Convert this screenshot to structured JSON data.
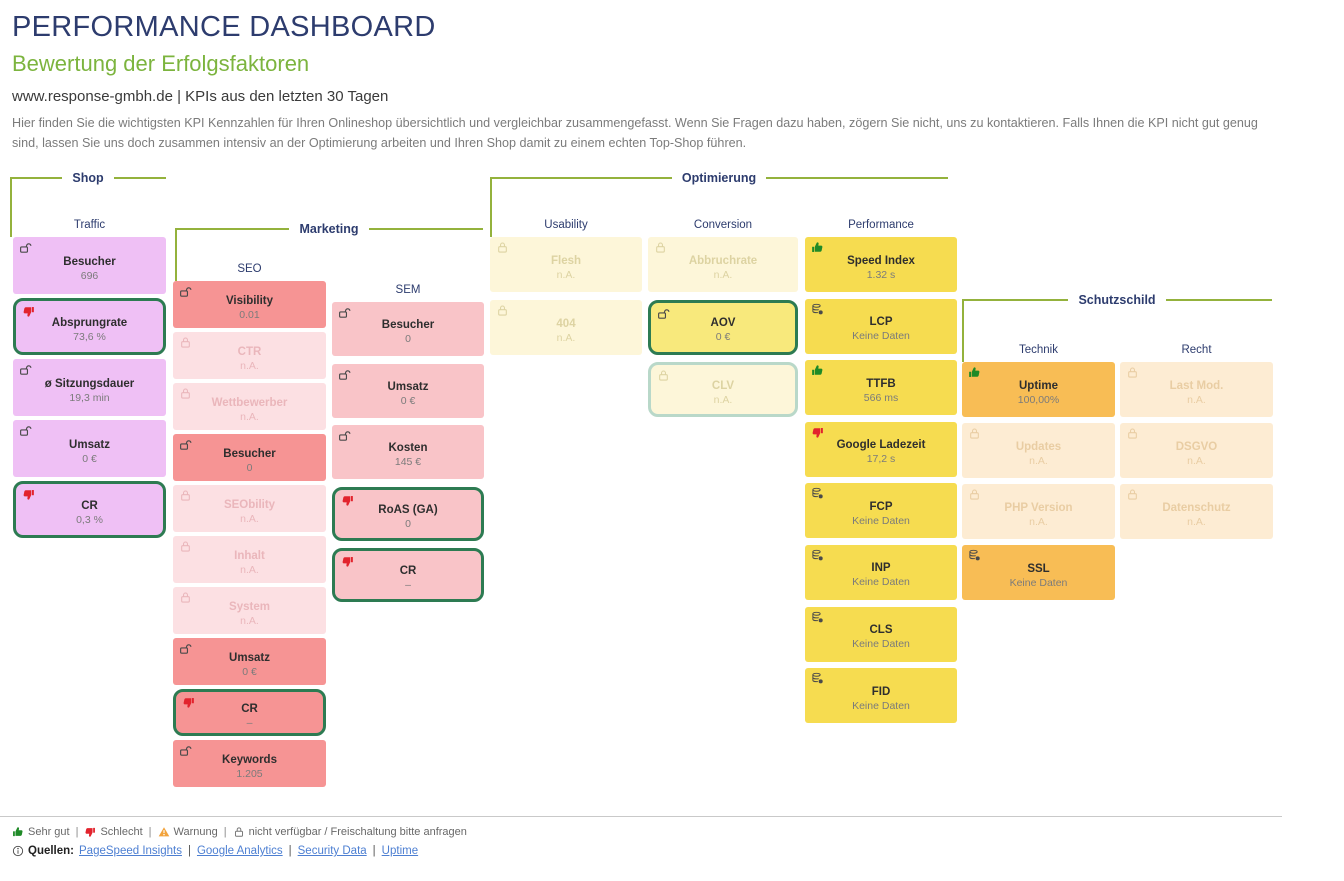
{
  "header": {
    "title": "PERFORMANCE DASHBOARD",
    "subtitle": "Bewertung der Erfolgsfaktoren",
    "meta": "www.response-gmbh.de | KPIs aus den letzten 30 Tagen",
    "description": "Hier finden Sie die wichtigsten KPI Kennzahlen für Ihren Onlineshop übersichtlich und vergleichbar zusammengefasst. Wenn Sie Fragen dazu haben, zögern Sie nicht, uns zu kontaktieren. Falls Ihnen die KPI nicht gut genug sind, lassen Sie uns doch zusammen intensiv an der Optimierung arbeiten und Ihren Shop damit zu einem echten Top-Shop führen."
  },
  "colors": {
    "title_navy": "#2d3c6e",
    "accent_green": "#7cb43e",
    "bracket_line": "#94b23c",
    "selected_border": "#2d7b52",
    "good": "#1f8a27",
    "bad": "#e2232d",
    "warning": "#f2a33c",
    "link_blue": "#4d7fd2"
  },
  "board": {
    "groups": [
      {
        "id": "shop",
        "label": "Shop",
        "columns": [
          {
            "id": "traffic",
            "label": "Traffic",
            "theme": "purple",
            "tiles": [
              {
                "title": "Besucher",
                "value": "696",
                "icon": "unlock-icon",
                "state": "active"
              },
              {
                "title": "Absprungrate",
                "value": "73,6 %",
                "icon": "thumb-down-icon",
                "state": "active",
                "selected": true
              },
              {
                "title": "ø Sitzungsdauer",
                "value": "19,3 min",
                "icon": "unlock-icon",
                "state": "active"
              },
              {
                "title": "Umsatz",
                "value": "0 €",
                "icon": "unlock-icon",
                "state": "active"
              },
              {
                "title": "CR",
                "value": "0,3 %",
                "icon": "thumb-down-icon",
                "state": "active",
                "selected": true
              }
            ]
          }
        ]
      },
      {
        "id": "marketing",
        "label": "Marketing",
        "columns": [
          {
            "id": "seo",
            "label": "SEO",
            "theme": "seo",
            "tiles": [
              {
                "title": "Visibility",
                "value": "0.01",
                "icon": "unlock-icon",
                "state": "active"
              },
              {
                "title": "CTR",
                "value": "n.A.",
                "icon": "lock-icon",
                "state": "locked"
              },
              {
                "title": "Wettbewerber",
                "value": "n.A.",
                "icon": "lock-icon",
                "state": "locked"
              },
              {
                "title": "Besucher",
                "value": "0",
                "icon": "unlock-icon",
                "state": "active"
              },
              {
                "title": "SEObility",
                "value": "n.A.",
                "icon": "lock-icon",
                "state": "locked"
              },
              {
                "title": "Inhalt",
                "value": "n.A.",
                "icon": "lock-icon",
                "state": "locked"
              },
              {
                "title": "System",
                "value": "n.A.",
                "icon": "lock-icon",
                "state": "locked"
              },
              {
                "title": "Umsatz",
                "value": "0 €",
                "icon": "unlock-icon",
                "state": "active"
              },
              {
                "title": "CR",
                "value": "–",
                "icon": "thumb-down-icon",
                "state": "active",
                "selected": true
              },
              {
                "title": "Keywords",
                "value": "1.205",
                "icon": "unlock-icon",
                "state": "active"
              }
            ]
          },
          {
            "id": "sem",
            "label": "SEM",
            "theme": "sem",
            "tiles": [
              {
                "title": "Besucher",
                "value": "0",
                "icon": "unlock-icon",
                "state": "active"
              },
              {
                "title": "Umsatz",
                "value": "0 €",
                "icon": "unlock-icon",
                "state": "active"
              },
              {
                "title": "Kosten",
                "value": "145 €",
                "icon": "unlock-icon",
                "state": "active"
              },
              {
                "title": "RoAS (GA)",
                "value": "0",
                "icon": "thumb-down-icon",
                "state": "active",
                "selected": true
              },
              {
                "title": "CR",
                "value": "–",
                "icon": "thumb-down-icon",
                "state": "active",
                "selected": true
              }
            ]
          }
        ]
      },
      {
        "id": "optimierung",
        "label": "Optimierung",
        "columns": [
          {
            "id": "usability",
            "label": "Usability",
            "theme": "yellow",
            "tiles": [
              {
                "title": "Flesh",
                "value": "n.A.",
                "icon": "lock-icon",
                "state": "locked"
              },
              {
                "title": "404",
                "value": "n.A.",
                "icon": "lock-icon",
                "state": "locked"
              }
            ]
          },
          {
            "id": "conversion",
            "label": "Conversion",
            "theme": "yellow",
            "tiles": [
              {
                "title": "Abbruchrate",
                "value": "n.A.",
                "icon": "lock-icon",
                "state": "locked"
              },
              {
                "title": "AOV",
                "value": "0 €",
                "icon": "unlock-icon",
                "state": "active",
                "selected": true
              },
              {
                "title": "CLV",
                "value": "n.A.",
                "icon": "lock-icon",
                "state": "locked",
                "variant": "clv"
              }
            ]
          },
          {
            "id": "performance",
            "label": "Performance",
            "theme": "perf",
            "tiles": [
              {
                "title": "Speed Index",
                "value": "1.32 s",
                "icon": "thumb-up-icon",
                "state": "active"
              },
              {
                "title": "LCP",
                "value": "Keine Daten",
                "icon": "database-icon",
                "state": "active"
              },
              {
                "title": "TTFB",
                "value": "566 ms",
                "icon": "thumb-up-icon",
                "state": "active"
              },
              {
                "title": "Google Ladezeit",
                "value": "17,2 s",
                "icon": "thumb-down-icon",
                "state": "active"
              },
              {
                "title": "FCP",
                "value": "Keine Daten",
                "icon": "database-icon",
                "state": "active"
              },
              {
                "title": "INP",
                "value": "Keine Daten",
                "icon": "database-icon",
                "state": "active"
              },
              {
                "title": "CLS",
                "value": "Keine Daten",
                "icon": "database-icon",
                "state": "active"
              },
              {
                "title": "FID",
                "value": "Keine Daten",
                "icon": "database-icon",
                "state": "active"
              }
            ]
          }
        ]
      },
      {
        "id": "schutzschild",
        "label": "Schutzschild",
        "columns": [
          {
            "id": "technik",
            "label": "Technik",
            "theme": "orange",
            "tiles": [
              {
                "title": "Uptime",
                "value": "100,00%",
                "icon": "thumb-up-icon",
                "state": "active"
              },
              {
                "title": "Updates",
                "value": "n.A.",
                "icon": "lock-icon",
                "state": "locked"
              },
              {
                "title": "PHP Version",
                "value": "n.A.",
                "icon": "lock-icon",
                "state": "locked"
              },
              {
                "title": "SSL",
                "value": "Keine Daten",
                "icon": "database-icon",
                "state": "active"
              }
            ]
          },
          {
            "id": "recht",
            "label": "Recht",
            "theme": "orange",
            "tiles": [
              {
                "title": "Last Mod.",
                "value": "n.A.",
                "icon": "lock-icon",
                "state": "locked"
              },
              {
                "title": "DSGVO",
                "value": "n.A.",
                "icon": "lock-icon",
                "state": "locked"
              },
              {
                "title": "Datenschutz",
                "value": "n.A.",
                "icon": "lock-icon",
                "state": "locked"
              }
            ]
          }
        ]
      }
    ]
  },
  "legend": {
    "separator": "|",
    "items": [
      {
        "icon": "thumb-up-icon",
        "label": "Sehr gut"
      },
      {
        "icon": "thumb-down-icon",
        "label": "Schlecht"
      },
      {
        "icon": "warning-icon",
        "label": "Warnung"
      },
      {
        "icon": "lock-icon",
        "label": "nicht verfügbar / Freischaltung bitte anfragen"
      }
    ]
  },
  "sources": {
    "icon": "info-icon",
    "prefix": "Quellen:",
    "separator": "|",
    "links": [
      "PageSpeed Insights",
      "Google Analytics",
      "Security Data",
      "Uptime"
    ]
  }
}
